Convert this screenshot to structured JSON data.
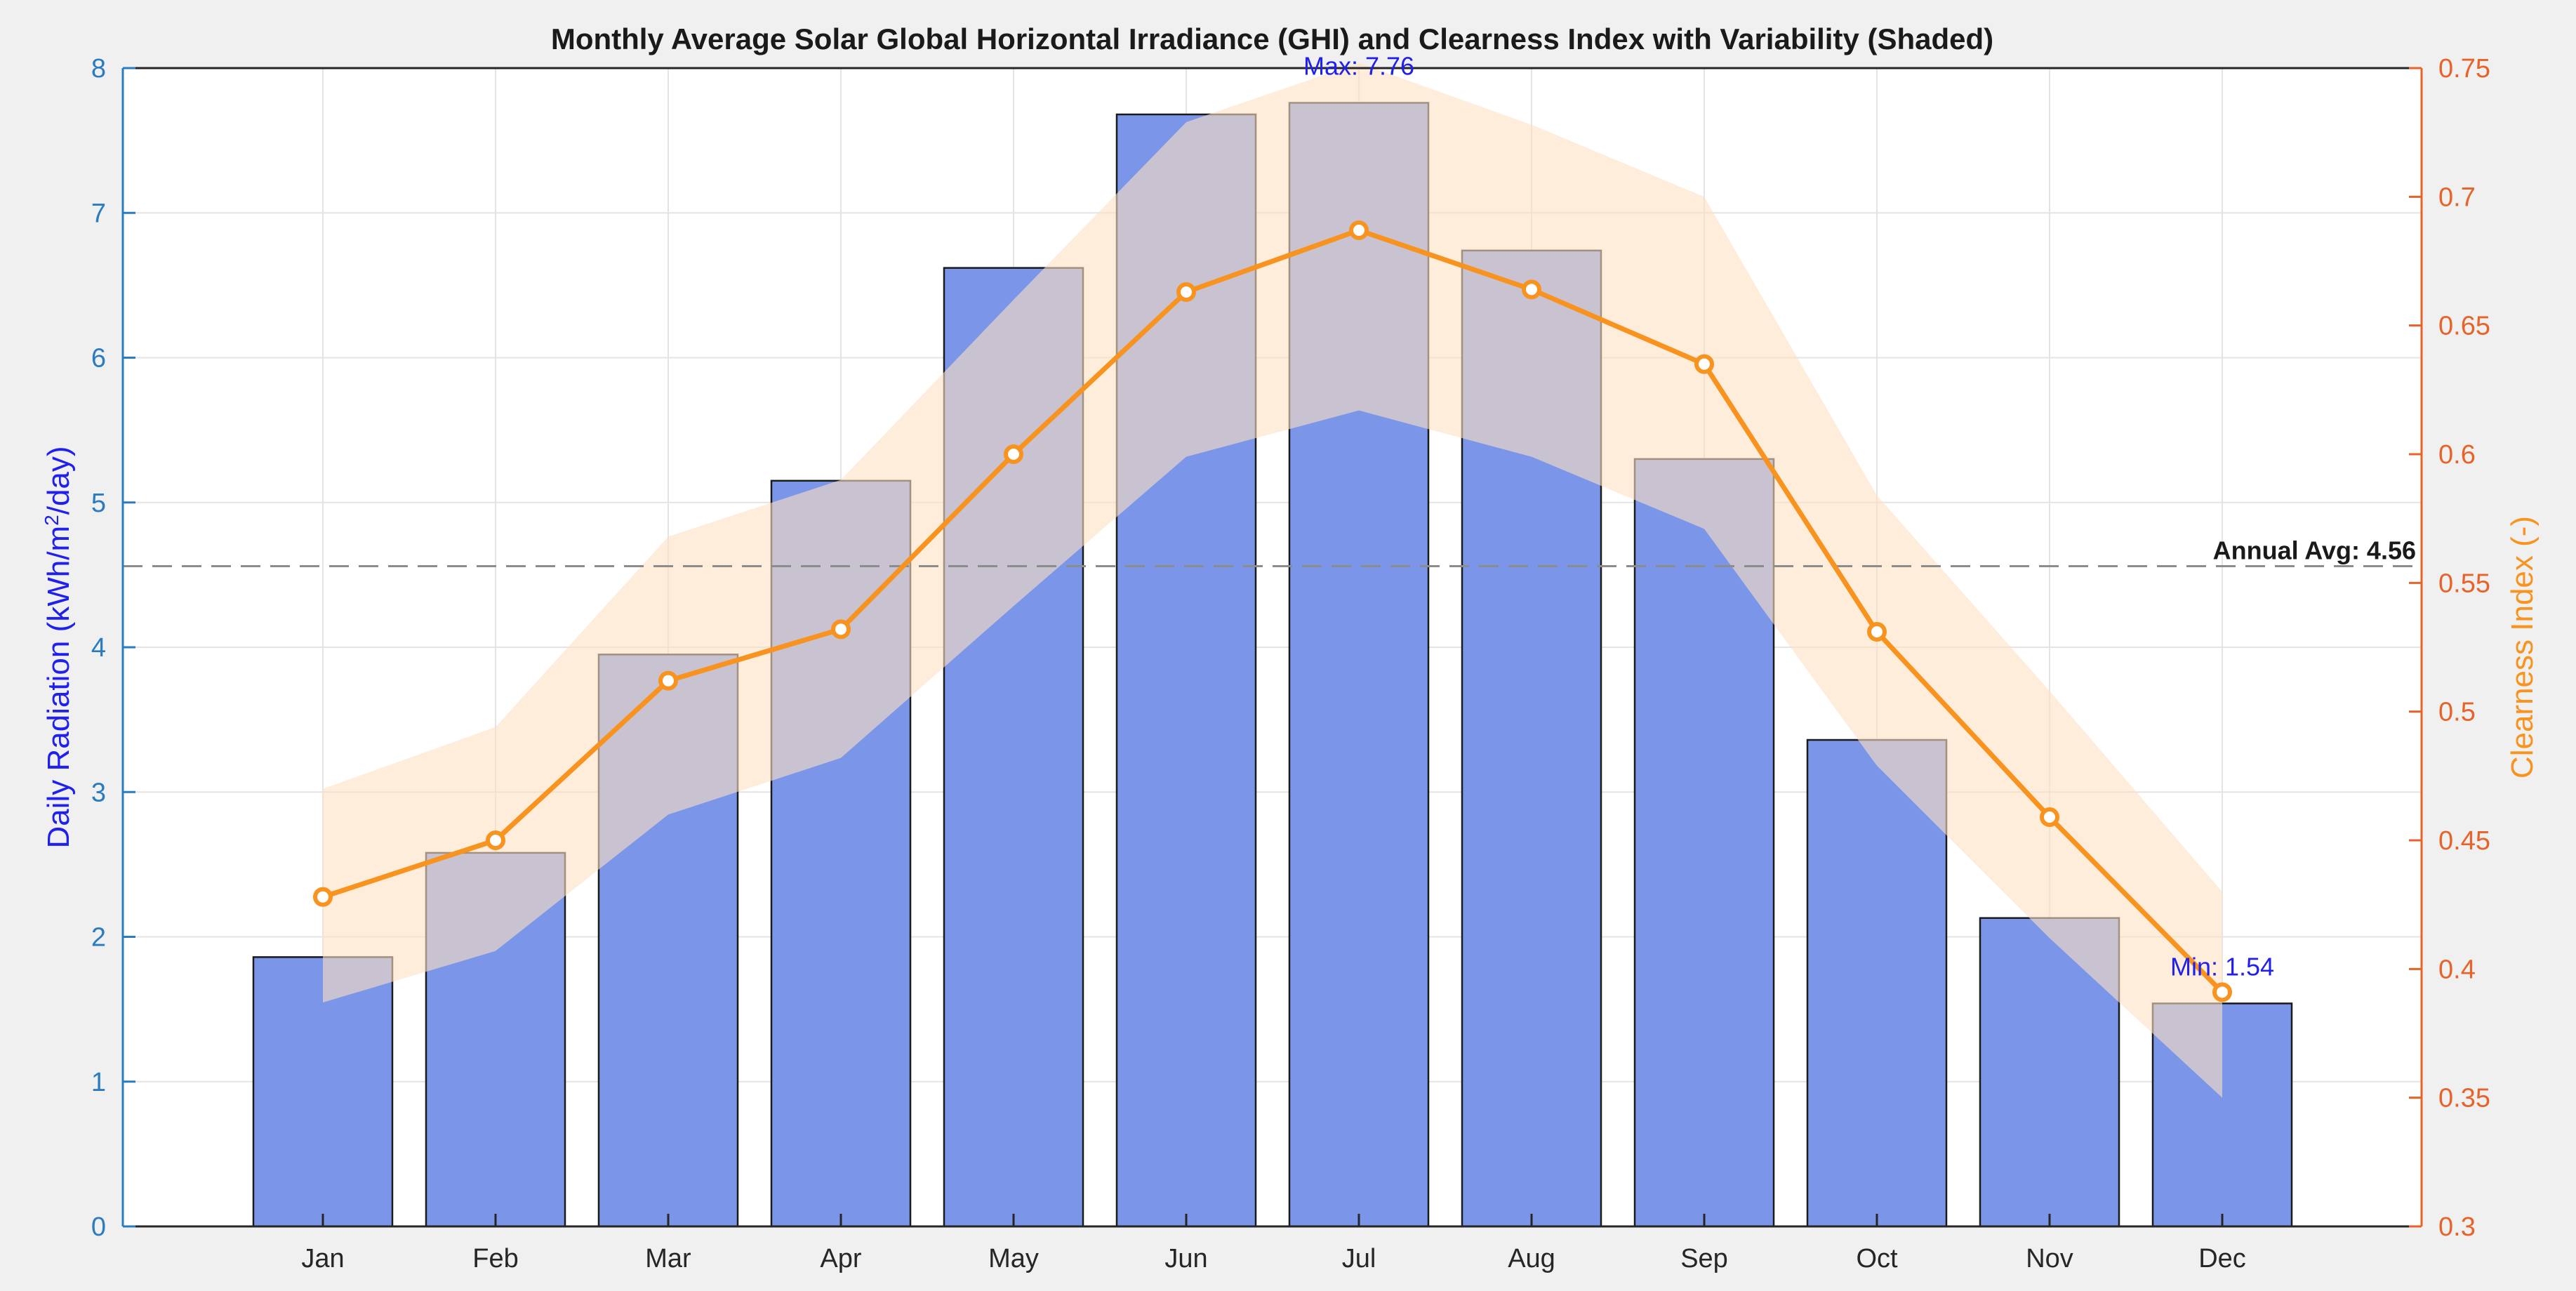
{
  "chart_data": {
    "type": "bar+line",
    "title": "Monthly Average Solar Global Horizontal Irradiance (GHI) and Clearness Index with Variability (Shaded)",
    "categories": [
      "Jan",
      "Feb",
      "Mar",
      "Apr",
      "May",
      "Jun",
      "Jul",
      "Aug",
      "Sep",
      "Oct",
      "Nov",
      "Dec"
    ],
    "left_axis": {
      "label_prefix": "Daily Radiation (kWh/m",
      "label_sup": "2",
      "label_suffix": "/day)",
      "ylim": [
        0,
        8
      ],
      "ticks": [
        "0",
        "1",
        "2",
        "3",
        "4",
        "5",
        "6",
        "7",
        "8"
      ],
      "tick_values": [
        0,
        1,
        2,
        3,
        4,
        5,
        6,
        7,
        8
      ]
    },
    "right_axis": {
      "label": "Clearness Index (-)",
      "ylim": [
        0.3,
        0.75
      ],
      "ticks": [
        "0.3",
        "0.35",
        "0.4",
        "0.45",
        "0.5",
        "0.55",
        "0.6",
        "0.65",
        "0.7",
        "0.75"
      ],
      "tick_values": [
        0.3,
        0.35,
        0.4,
        0.45,
        0.5,
        0.55,
        0.6,
        0.65,
        0.7,
        0.75
      ]
    },
    "series": [
      {
        "name": "Daily Radiation",
        "type": "bar",
        "axis": "left",
        "values": [
          1.86,
          2.58,
          3.95,
          5.15,
          6.62,
          7.68,
          7.76,
          6.74,
          5.3,
          3.36,
          2.13,
          1.54
        ]
      },
      {
        "name": "Clearness Index",
        "type": "line",
        "axis": "right",
        "values": [
          0.428,
          0.45,
          0.512,
          0.532,
          0.6,
          0.663,
          0.687,
          0.664,
          0.635,
          0.531,
          0.459,
          0.391
        ],
        "band_upper": [
          0.47,
          0.494,
          0.568,
          0.59,
          0.66,
          0.729,
          0.752,
          0.728,
          0.7,
          0.584,
          0.508,
          0.43
        ],
        "band_lower": [
          0.387,
          0.407,
          0.46,
          0.482,
          0.541,
          0.599,
          0.617,
          0.599,
          0.571,
          0.479,
          0.412,
          0.35
        ]
      }
    ],
    "reference_line": {
      "value": 4.56,
      "label": "Annual Avg: 4.56"
    },
    "annotations": {
      "max": {
        "category": "Jul",
        "value": 7.76,
        "label": "Max: 7.76"
      },
      "min": {
        "category": "Dec",
        "value": 1.54,
        "label": "Min: 1.54"
      }
    },
    "grid": true
  },
  "colors": {
    "bar": "#7b96e8",
    "band": "#fde1c1",
    "line": "#f7931e",
    "left_axis": "#2b7bc1",
    "left_label": "#2020ee",
    "right_axis": "#e8632a",
    "right_label": "#f7931e",
    "annotation": "#2020ee",
    "ref_line": "#8c8c8c"
  }
}
